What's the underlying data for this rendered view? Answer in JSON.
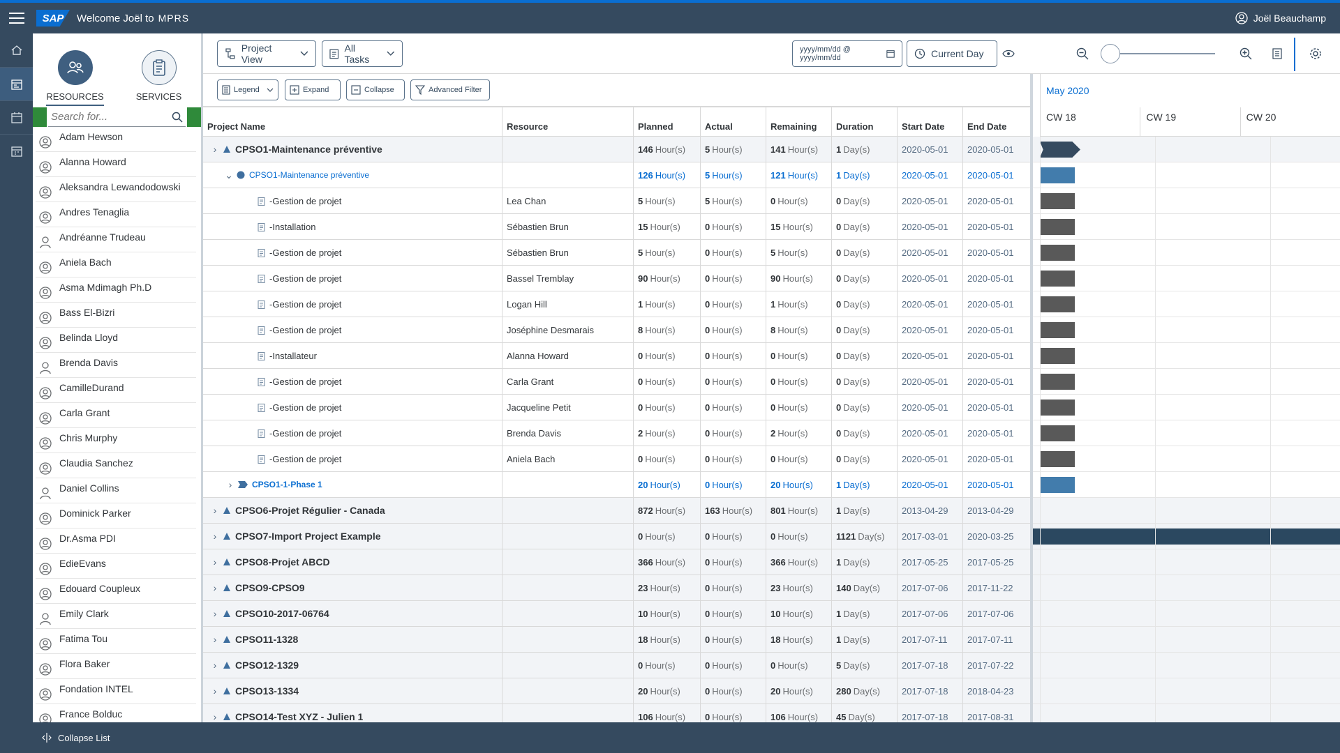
{
  "header": {
    "welcome": "Welcome Joël to",
    "brand": "MPRS",
    "logo": "SAP",
    "user": "Joël Beauchamp"
  },
  "leftnav": [
    "home-icon",
    "planning-icon",
    "calendar-icon",
    "schedule-icon"
  ],
  "resources_panel": {
    "tabs": [
      {
        "label": "RESOURCES",
        "active": true
      },
      {
        "label": "SERVICES",
        "active": false
      }
    ],
    "search_placeholder": "Search for...",
    "items": [
      "Adam Hewson",
      "Alanna Howard",
      "Aleksandra Lewandodowski",
      "Andres Tenaglia",
      "Andréanne Trudeau",
      "Aniela Bach",
      "Asma Mdimagh Ph.D",
      "Bass El-Bizri",
      "Belinda Lloyd",
      "Brenda Davis",
      "CamilleDurand",
      "Carla Grant",
      "Chris Murphy",
      "Claudia Sanchez",
      "Daniel Collins",
      "Dominick Parker",
      "Dr.Asma PDI",
      "EdieEvans",
      "Edouard Coupleux",
      "Emily Clark",
      "Fatima Tou",
      "Flora Baker",
      "Fondation INTEL",
      "France Bolduc"
    ]
  },
  "bottom": {
    "collapse_list": "Collapse List"
  },
  "toolbar": {
    "project_view": "Project View",
    "all_tasks": "All Tasks",
    "date_placeholder": "yyyy/mm/dd @ yyyy/mm/dd",
    "current_day": "Current Day",
    "legend": "Legend",
    "expand": "Expand",
    "collapse": "Collapse",
    "advanced_filter": "Advanced Filter"
  },
  "grid": {
    "columns": [
      "Project Name",
      "Resource",
      "Planned",
      "Actual",
      "Remaining",
      "Duration",
      "Start Date",
      "End Date"
    ],
    "hour_unit": "Hour(s)",
    "day_unit": "Day(s)",
    "rows": [
      {
        "level": 1,
        "name": "CPSO1-Maintenance préventive",
        "resource": "",
        "planned": "146",
        "actual": "5",
        "remaining": "141",
        "duration": "1",
        "start": "2020-05-01",
        "end": "2020-05-01",
        "expanded": true
      },
      {
        "level": 2,
        "name": "CPSO1-Maintenance préventive",
        "resource": "",
        "planned": "126",
        "actual": "5",
        "remaining": "121",
        "duration": "1",
        "start": "2020-05-01",
        "end": "2020-05-01",
        "expanded": true
      },
      {
        "level": 3,
        "name": "-Gestion de projet",
        "resource": "Lea Chan",
        "planned": "5",
        "actual": "5",
        "remaining": "0",
        "duration": "0",
        "start": "2020-05-01",
        "end": "2020-05-01"
      },
      {
        "level": 3,
        "name": "-Installation",
        "resource": "Sébastien Brun",
        "planned": "15",
        "actual": "0",
        "remaining": "15",
        "duration": "0",
        "start": "2020-05-01",
        "end": "2020-05-01"
      },
      {
        "level": 3,
        "name": "-Gestion de projet",
        "resource": "Sébastien Brun",
        "planned": "5",
        "actual": "0",
        "remaining": "5",
        "duration": "0",
        "start": "2020-05-01",
        "end": "2020-05-01"
      },
      {
        "level": 3,
        "name": "-Gestion de projet",
        "resource": "Bassel Tremblay",
        "planned": "90",
        "actual": "0",
        "remaining": "90",
        "duration": "0",
        "start": "2020-05-01",
        "end": "2020-05-01"
      },
      {
        "level": 3,
        "name": "-Gestion de projet",
        "resource": "Logan Hill",
        "planned": "1",
        "actual": "0",
        "remaining": "1",
        "duration": "0",
        "start": "2020-05-01",
        "end": "2020-05-01"
      },
      {
        "level": 3,
        "name": "-Gestion de projet",
        "resource": "Joséphine Desmarais",
        "planned": "8",
        "actual": "0",
        "remaining": "8",
        "duration": "0",
        "start": "2020-05-01",
        "end": "2020-05-01"
      },
      {
        "level": 3,
        "name": "-Installateur",
        "resource": "Alanna Howard",
        "planned": "0",
        "actual": "0",
        "remaining": "0",
        "duration": "0",
        "start": "2020-05-01",
        "end": "2020-05-01"
      },
      {
        "level": 3,
        "name": "-Gestion de projet",
        "resource": "Carla Grant",
        "planned": "0",
        "actual": "0",
        "remaining": "0",
        "duration": "0",
        "start": "2020-05-01",
        "end": "2020-05-01"
      },
      {
        "level": 3,
        "name": "-Gestion de projet",
        "resource": "Jacqueline Petit",
        "planned": "0",
        "actual": "0",
        "remaining": "0",
        "duration": "0",
        "start": "2020-05-01",
        "end": "2020-05-01"
      },
      {
        "level": 3,
        "name": "-Gestion de projet",
        "resource": "Brenda Davis",
        "planned": "2",
        "actual": "0",
        "remaining": "2",
        "duration": "0",
        "start": "2020-05-01",
        "end": "2020-05-01"
      },
      {
        "level": 3,
        "name": "-Gestion de projet",
        "resource": "Aniela Bach",
        "planned": "0",
        "actual": "0",
        "remaining": "0",
        "duration": "0",
        "start": "2020-05-01",
        "end": "2020-05-01"
      },
      {
        "level": "phase",
        "name": "CPSO1-1-Phase 1",
        "resource": "",
        "planned": "20",
        "actual": "0",
        "remaining": "20",
        "duration": "1",
        "start": "2020-05-01",
        "end": "2020-05-01"
      },
      {
        "level": 1,
        "name": "CPSO6-Projet Régulier - Canada",
        "resource": "",
        "planned": "872",
        "actual": "163",
        "remaining": "801",
        "duration": "1",
        "start": "2013-04-29",
        "end": "2013-04-29"
      },
      {
        "level": 1,
        "name": "CPSO7-Import Project Example",
        "resource": "",
        "planned": "0",
        "actual": "0",
        "remaining": "0",
        "duration": "1121",
        "start": "2017-03-01",
        "end": "2020-03-25"
      },
      {
        "level": 1,
        "name": "CPSO8-Projet ABCD",
        "resource": "",
        "planned": "366",
        "actual": "0",
        "remaining": "366",
        "duration": "1",
        "start": "2017-05-25",
        "end": "2017-05-25"
      },
      {
        "level": 1,
        "name": "CPSO9-CPSO9",
        "resource": "",
        "planned": "23",
        "actual": "0",
        "remaining": "23",
        "duration": "140",
        "start": "2017-07-06",
        "end": "2017-11-22"
      },
      {
        "level": 1,
        "name": "CPSO10-2017-06764",
        "resource": "",
        "planned": "10",
        "actual": "0",
        "remaining": "10",
        "duration": "1",
        "start": "2017-07-06",
        "end": "2017-07-06"
      },
      {
        "level": 1,
        "name": "CPSO11-1328",
        "resource": "",
        "planned": "18",
        "actual": "0",
        "remaining": "18",
        "duration": "1",
        "start": "2017-07-11",
        "end": "2017-07-11"
      },
      {
        "level": 1,
        "name": "CPSO12-1329",
        "resource": "",
        "planned": "0",
        "actual": "0",
        "remaining": "0",
        "duration": "5",
        "start": "2017-07-18",
        "end": "2017-07-22"
      },
      {
        "level": 1,
        "name": "CPSO13-1334",
        "resource": "",
        "planned": "20",
        "actual": "0",
        "remaining": "20",
        "duration": "280",
        "start": "2017-07-18",
        "end": "2018-04-23"
      },
      {
        "level": 1,
        "name": "CPSO14-Test XYZ - Julien 1",
        "resource": "",
        "planned": "106",
        "actual": "0",
        "remaining": "106",
        "duration": "45",
        "start": "2017-07-18",
        "end": "2017-08-31"
      }
    ]
  },
  "gantt": {
    "month": "May 2020",
    "weeks": [
      "CW 18",
      "CW 19",
      "CW 20"
    ],
    "bars": [
      "milestone",
      "blue",
      "dark",
      "dark",
      "dark",
      "dark",
      "dark",
      "dark",
      "dark",
      "dark",
      "dark",
      "dark",
      "dark",
      "blue",
      "none",
      "full",
      "none",
      "none",
      "none",
      "none",
      "none",
      "none",
      "none"
    ],
    "colors": {
      "dark": "#595959",
      "blue": "#427cac",
      "navy": "#2b4860"
    }
  }
}
